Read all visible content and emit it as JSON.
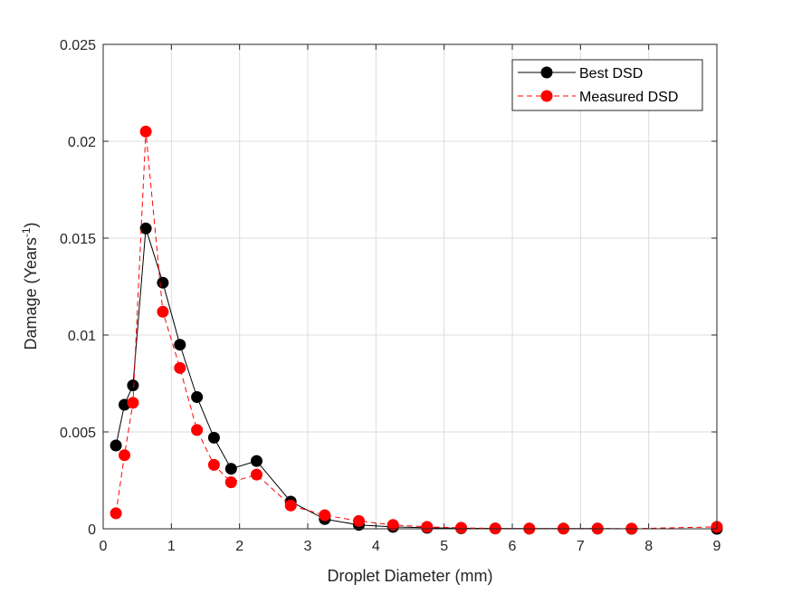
{
  "chart_data": {
    "type": "line",
    "title": "",
    "xlabel": "Droplet Diameter (mm)",
    "ylabel_main": "Damage (Years",
    "ylabel_sup": "-1",
    "ylabel_close": ")",
    "xlim": [
      0,
      9
    ],
    "ylim": [
      0,
      0.025
    ],
    "xticks": [
      0,
      1,
      2,
      3,
      4,
      5,
      6,
      7,
      8,
      9
    ],
    "xtick_labels": [
      "0",
      "1",
      "2",
      "3",
      "4",
      "5",
      "6",
      "7",
      "8",
      "9"
    ],
    "yticks": [
      0,
      0.005,
      0.01,
      0.015,
      0.02,
      0.025
    ],
    "ytick_labels": [
      "0",
      "0.005",
      "0.01",
      "0.015",
      "0.02",
      "0.025"
    ],
    "grid": true,
    "legend_position": "top-right",
    "series": [
      {
        "name": "Best DSD",
        "color": "#000000",
        "line_style": "solid",
        "marker": "circle",
        "x": [
          0.187,
          0.312,
          0.437,
          0.625,
          0.875,
          1.125,
          1.375,
          1.625,
          1.875,
          2.25,
          2.75,
          3.25,
          3.75,
          4.25,
          4.75,
          5.25,
          5.75,
          6.25,
          6.75,
          7.25,
          7.75,
          9.0
        ],
        "y": [
          0.0043,
          0.0064,
          0.0074,
          0.0155,
          0.0127,
          0.0095,
          0.0068,
          0.0047,
          0.0031,
          0.0035,
          0.0014,
          0.0005,
          0.0002,
          0.0001,
          5e-05,
          3e-05,
          2e-05,
          1e-05,
          1e-05,
          1e-05,
          0.0,
          0.0
        ]
      },
      {
        "name": "Measured DSD",
        "color": "#ff0000",
        "line_style": "dashed",
        "marker": "circle",
        "x": [
          0.187,
          0.312,
          0.437,
          0.625,
          0.875,
          1.125,
          1.375,
          1.625,
          1.875,
          2.25,
          2.75,
          3.25,
          3.75,
          4.25,
          4.75,
          5.25,
          5.75,
          6.25,
          6.75,
          7.25,
          7.75,
          9.0
        ],
        "y": [
          0.0008,
          0.0038,
          0.0065,
          0.0205,
          0.0112,
          0.0083,
          0.0051,
          0.0033,
          0.0024,
          0.0028,
          0.0012,
          0.0007,
          0.0004,
          0.0002,
          0.0001,
          5e-05,
          2e-05,
          1e-05,
          1e-05,
          1e-05,
          1e-05,
          0.0001
        ]
      }
    ]
  }
}
